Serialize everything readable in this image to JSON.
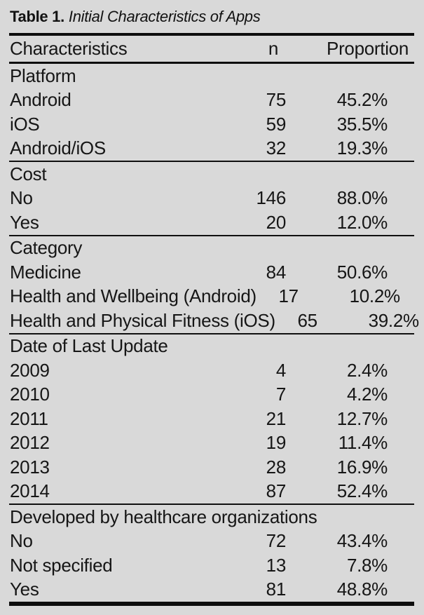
{
  "title": {
    "label": "Table 1.",
    "rest": "Initial Characteristics of Apps"
  },
  "columns": {
    "characteristics": "Characteristics",
    "n": "n",
    "proportion": "Proportion"
  },
  "table": {
    "sections": [
      {
        "header": "Platform",
        "rows": [
          {
            "label": "Android",
            "n": "75",
            "proportion": "45.2%"
          },
          {
            "label": "iOS",
            "n": "59",
            "proportion": "35.5%"
          },
          {
            "label": "Android/iOS",
            "n": "32",
            "proportion": "19.3%"
          }
        ]
      },
      {
        "header": "Cost",
        "rows": [
          {
            "label": "No",
            "n": "146",
            "proportion": "88.0%"
          },
          {
            "label": "Yes",
            "n": "20",
            "proportion": "12.0%"
          }
        ]
      },
      {
        "header": "Category",
        "rows": [
          {
            "label": "Medicine",
            "n": "84",
            "proportion": "50.6%"
          },
          {
            "label": "Health and Wellbeing (Android)",
            "n": "17",
            "proportion": "10.2%"
          },
          {
            "label": "Health and Physical Fitness (iOS)",
            "n": "65",
            "proportion": "39.2%"
          }
        ]
      },
      {
        "header": "Date of Last Update",
        "rows": [
          {
            "label": "2009",
            "n": "4",
            "proportion": "2.4%"
          },
          {
            "label": "2010",
            "n": "7",
            "proportion": "4.2%"
          },
          {
            "label": "2011",
            "n": "21",
            "proportion": "12.7%"
          },
          {
            "label": "2012",
            "n": "19",
            "proportion": "11.4%"
          },
          {
            "label": "2013",
            "n": "28",
            "proportion": "16.9%"
          },
          {
            "label": "2014",
            "n": "87",
            "proportion": "52.4%"
          }
        ]
      },
      {
        "header": "Developed by healthcare organizations",
        "rows": [
          {
            "label": "No",
            "n": "72",
            "proportion": "43.4%"
          },
          {
            "label": "Not specified",
            "n": "13",
            "proportion": "7.8%"
          },
          {
            "label": "Yes",
            "n": "81",
            "proportion": "48.8%"
          }
        ]
      }
    ]
  },
  "colors": {
    "background": "#d9d9d9",
    "text": "#161616",
    "rule": "#0d0d0d"
  }
}
